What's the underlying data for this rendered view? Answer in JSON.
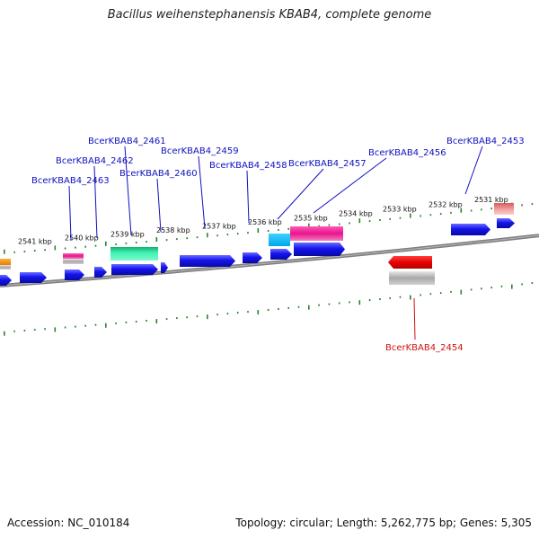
{
  "title": "Bacillus weihenstephanensis KBAB4, complete genome",
  "footer": {
    "accession": "Accession: NC_010184",
    "summary": "Topology: circular; Length: 5,262,775 bp; Genes: 5,305"
  },
  "colors": {
    "backbone": "#7f7f7f",
    "tick": "#2f7f2f",
    "label_blue": "#1010c0",
    "label_red": "#d01010",
    "cds": "#1a1aee"
  },
  "scale_ticks": [
    {
      "label": "2541 kbp"
    },
    {
      "label": "2540 kbp"
    },
    {
      "label": "2539 kbp"
    },
    {
      "label": "2538 kbp"
    },
    {
      "label": "2537 kbp"
    },
    {
      "label": "2536 kbp"
    },
    {
      "label": "2535 kbp"
    },
    {
      "label": "2534 kbp"
    },
    {
      "label": "2533 kbp"
    },
    {
      "label": "2532 kbp"
    },
    {
      "label": "2531 kbp"
    }
  ],
  "genes": [
    {
      "label": "BcerKBAB4_2461",
      "color": "label_blue"
    },
    {
      "label": "BcerKBAB4_2462",
      "color": "label_blue"
    },
    {
      "label": "BcerKBAB4_2463",
      "color": "label_blue"
    },
    {
      "label": "BcerKBAB4_2460",
      "color": "label_blue"
    },
    {
      "label": "BcerKBAB4_2459",
      "color": "label_blue"
    },
    {
      "label": "BcerKBAB4_2458",
      "color": "label_blue"
    },
    {
      "label": "BcerKBAB4_2457",
      "color": "label_blue"
    },
    {
      "label": "BcerKBAB4_2456",
      "color": "label_blue"
    },
    {
      "label": "BcerKBAB4_2453",
      "color": "label_blue"
    },
    {
      "label": "BcerKBAB4_2454",
      "color": "label_red"
    }
  ]
}
